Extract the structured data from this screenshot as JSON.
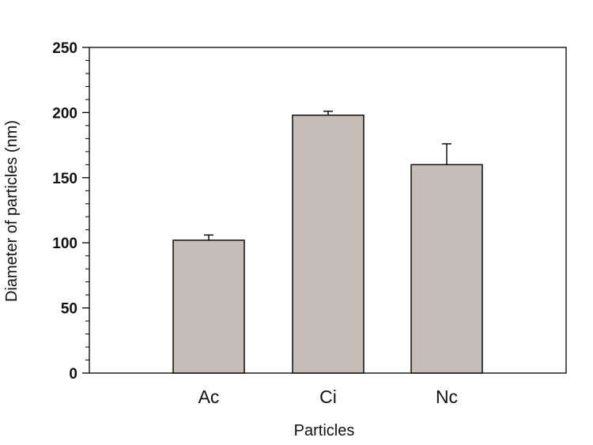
{
  "chart_data": {
    "type": "bar",
    "xlabel": "Particles",
    "ylabel": "Diameter of particles (nm)",
    "categories": [
      "Ac",
      "Ci",
      "Nc"
    ],
    "values": [
      102,
      198,
      160
    ],
    "error_upper": [
      4,
      3,
      16
    ],
    "ylim": [
      0,
      250
    ],
    "yticks": [
      0,
      50,
      100,
      150,
      200,
      250
    ],
    "ytick_labels": [
      "0",
      "50",
      "100",
      "150",
      "200",
      "250"
    ],
    "grid": false,
    "legend": "none",
    "bar_color": "#c4bdb8",
    "edge_color": "#000000"
  }
}
